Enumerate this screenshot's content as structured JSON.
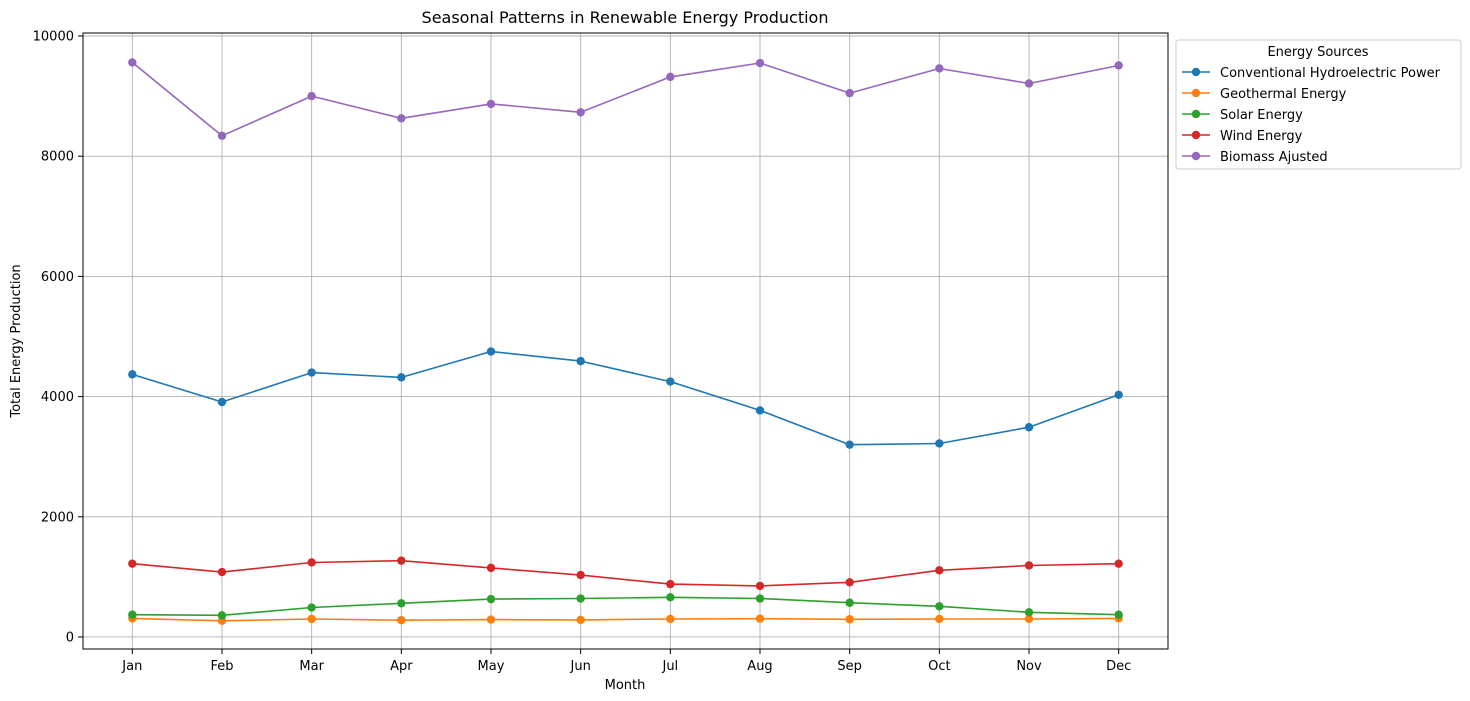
{
  "chart_data": {
    "type": "line",
    "title": "Seasonal Patterns in Renewable Energy Production",
    "xlabel": "Month",
    "ylabel": "Total Energy Production",
    "categories": [
      "Jan",
      "Feb",
      "Mar",
      "Apr",
      "May",
      "Jun",
      "Jul",
      "Aug",
      "Sep",
      "Oct",
      "Nov",
      "Dec"
    ],
    "ylim": [
      -200,
      10050
    ],
    "yticks": [
      0,
      2000,
      4000,
      6000,
      8000,
      10000
    ],
    "grid": true,
    "legend": {
      "title": "Energy Sources",
      "placement": "outside-top-right"
    },
    "series": [
      {
        "name": "Conventional Hydroelectric Power",
        "color": "#1f77b4",
        "values": [
          4370,
          3910,
          4400,
          4320,
          4750,
          4590,
          4250,
          3770,
          3200,
          3220,
          3490,
          4030
        ]
      },
      {
        "name": "Geothermal Energy",
        "color": "#ff7f0e",
        "values": [
          310,
          270,
          300,
          280,
          290,
          285,
          300,
          305,
          295,
          300,
          300,
          310
        ]
      },
      {
        "name": "Solar Energy",
        "color": "#2ca02c",
        "values": [
          370,
          360,
          490,
          560,
          630,
          640,
          660,
          640,
          570,
          510,
          410,
          370
        ]
      },
      {
        "name": "Wind Energy",
        "color": "#d62728",
        "values": [
          1220,
          1080,
          1240,
          1270,
          1150,
          1030,
          880,
          850,
          910,
          1110,
          1190,
          1220
        ]
      },
      {
        "name": "Biomass Ajusted",
        "color": "#9467bd",
        "values": [
          9560,
          8340,
          9000,
          8630,
          8870,
          8730,
          9320,
          9550,
          9050,
          9460,
          9210,
          9510
        ]
      }
    ]
  }
}
